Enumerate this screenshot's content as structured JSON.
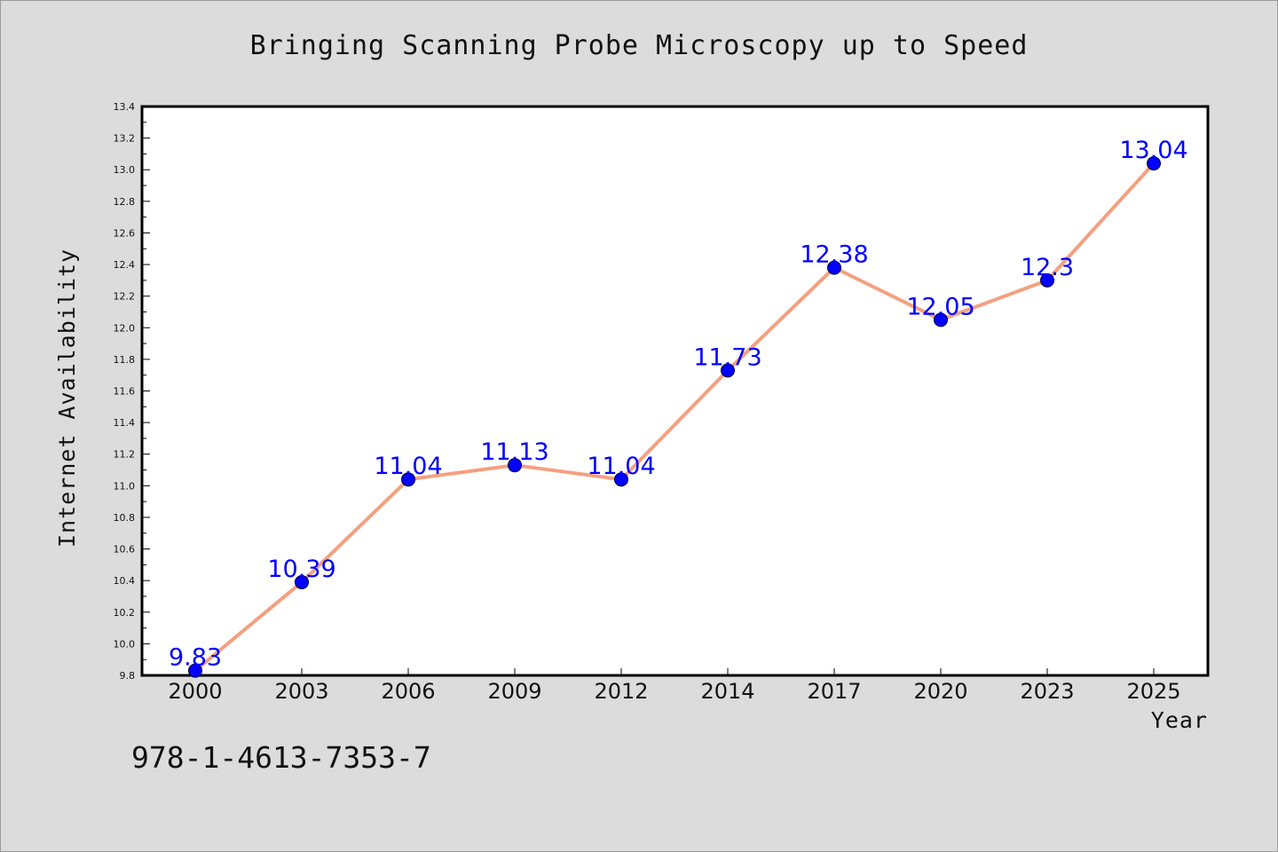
{
  "chart_data": {
    "type": "line",
    "title": "Bringing Scanning Probe Microscopy up to Speed",
    "xlabel": "Year",
    "ylabel": "Internet Availability",
    "categories": [
      "2000",
      "2003",
      "2006",
      "2009",
      "2012",
      "2014",
      "2017",
      "2020",
      "2023",
      "2025"
    ],
    "series": [
      {
        "values": [
          9.83,
          10.39,
          11.04,
          11.13,
          11.04,
          11.73,
          12.38,
          12.05,
          12.3,
          13.04
        ],
        "data_labels": [
          "9.83",
          "10.39",
          "11.04",
          "11.13",
          "11.04",
          "11.73",
          "12.38",
          "12.05",
          "12.3",
          "13.04"
        ],
        "line_color": "#f4a080",
        "marker_color": "#0000ff"
      }
    ],
    "ylim": [
      9.8,
      13.4
    ],
    "y_ticks": [
      "9.8",
      "10.0",
      "10.2",
      "10.4",
      "10.6",
      "10.8",
      "11.0",
      "11.2",
      "11.4",
      "11.6",
      "11.8",
      "12.0",
      "12.2",
      "12.4",
      "12.6",
      "12.8",
      "13.0",
      "13.2",
      "13.4"
    ],
    "grid": false,
    "legend": false
  },
  "footer_note": "978-1-4613-7353-7",
  "colors": {
    "background": "#dcdcdc",
    "plot_background": "#ffffff",
    "line": "#f4a080",
    "marker": "#0000ff",
    "data_label": "#0000ff"
  }
}
